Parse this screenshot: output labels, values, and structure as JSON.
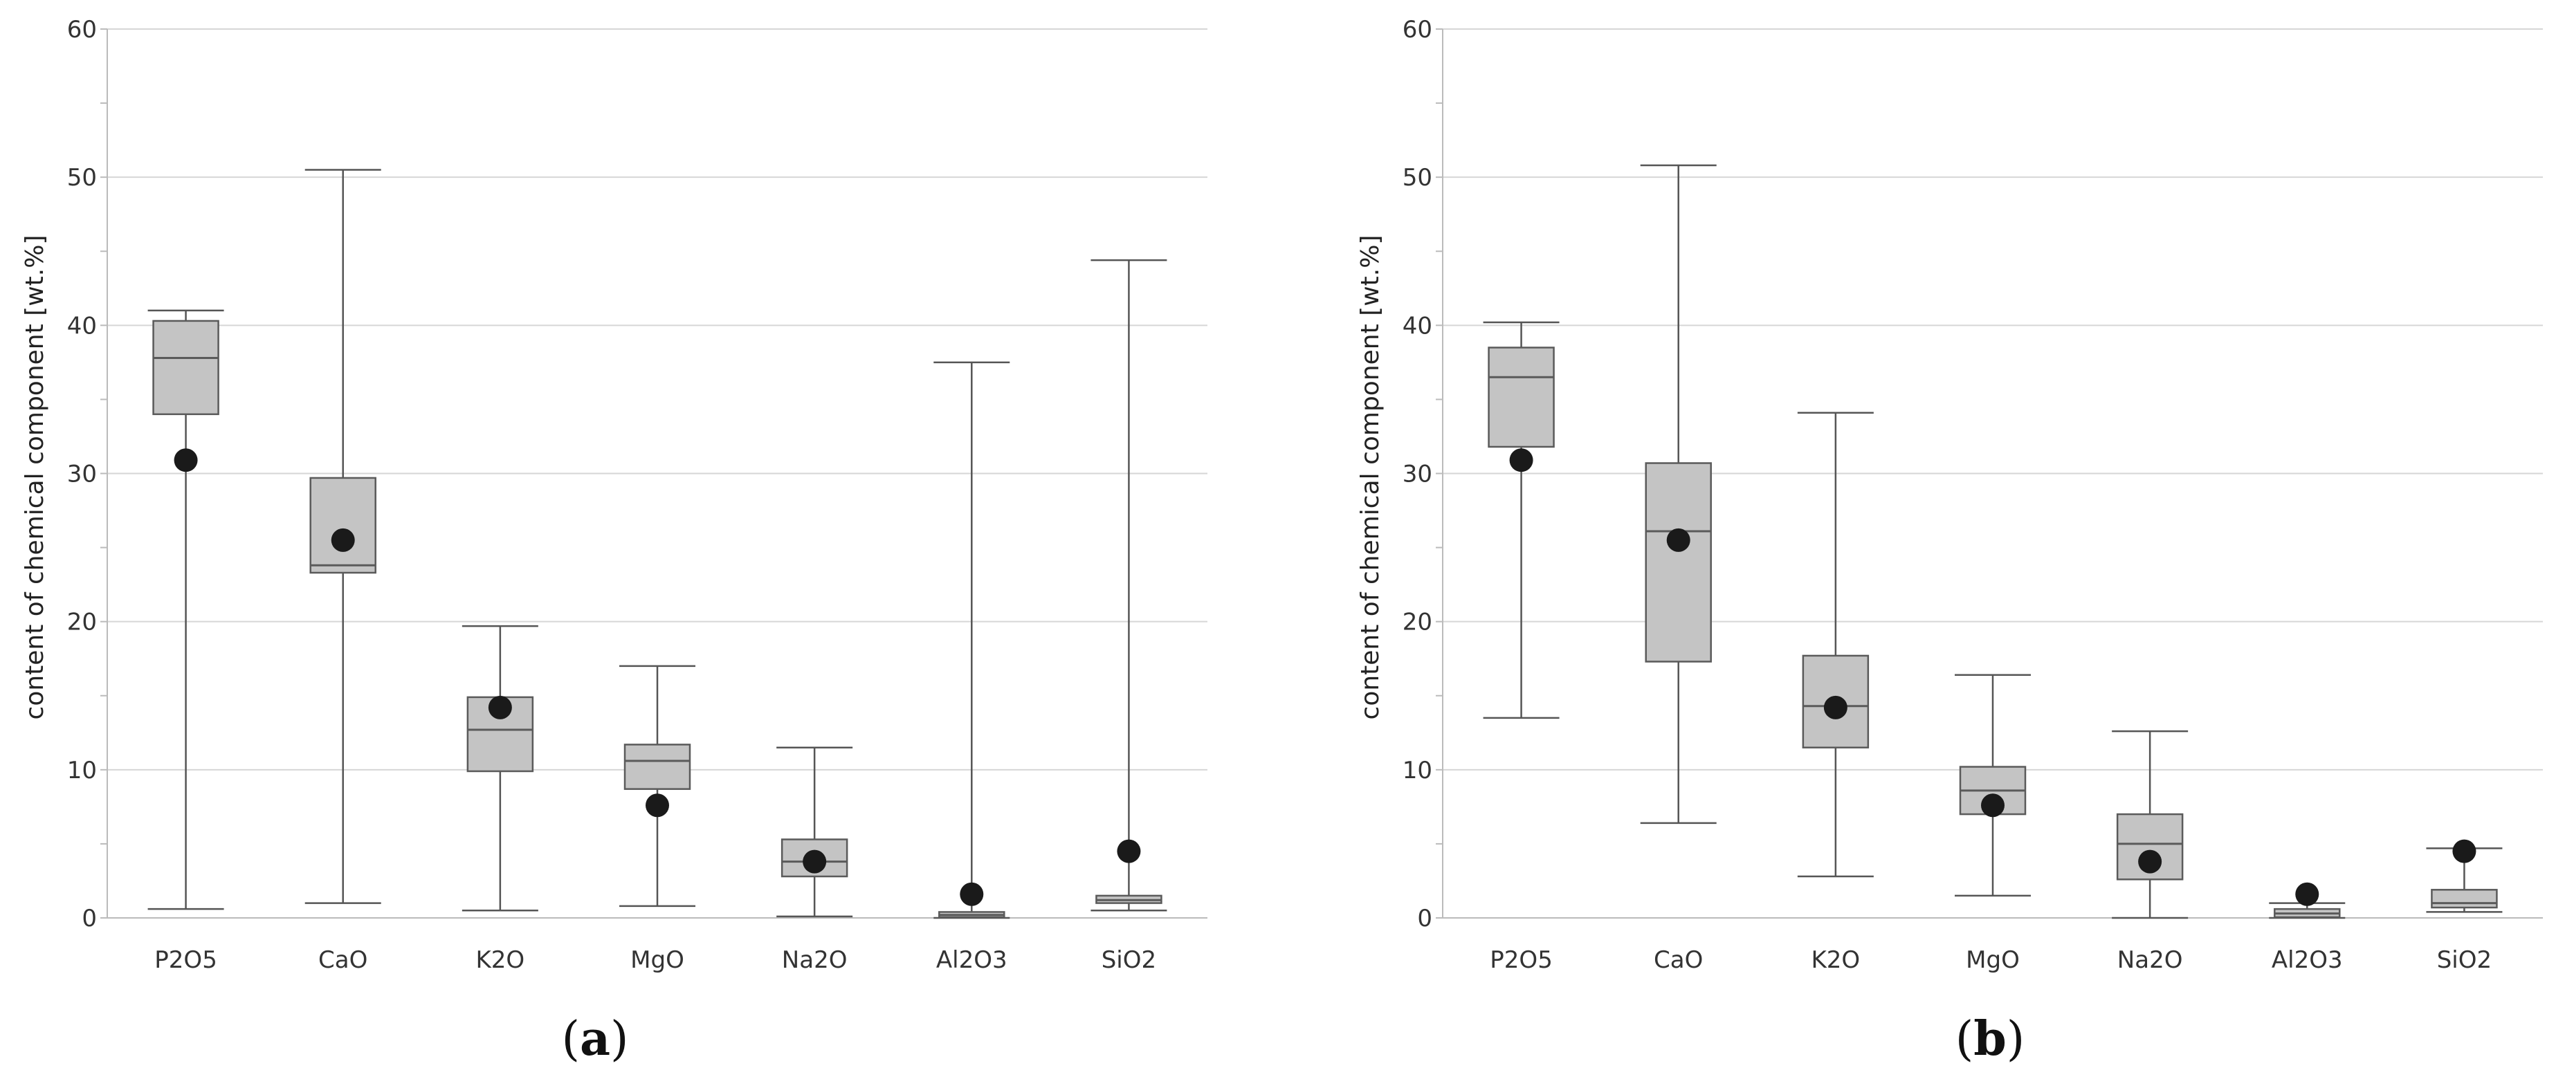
{
  "chart_data": [
    {
      "type": "box",
      "panel_label": "a",
      "ylabel": "content of chemical component [wt.%]",
      "ylim": [
        0,
        60
      ],
      "yticks": [
        "0",
        "10",
        "20",
        "30",
        "40",
        "50",
        "60"
      ],
      "grid": true,
      "categories": [
        "P2O5",
        "CaO",
        "K2O",
        "MgO",
        "Na2O",
        "Al2O3",
        "SiO2"
      ],
      "boxes": [
        {
          "category": "P2O5",
          "min": 0.6,
          "q1": 34.0,
          "median": 37.8,
          "q3": 40.3,
          "max": 41.0,
          "mean": 30.9
        },
        {
          "category": "CaO",
          "min": 1.0,
          "q1": 23.3,
          "median": 23.8,
          "q3": 29.7,
          "max": 50.5,
          "mean": 25.5
        },
        {
          "category": "K2O",
          "min": 0.5,
          "q1": 9.9,
          "median": 12.7,
          "q3": 14.9,
          "max": 19.7,
          "mean": 14.2
        },
        {
          "category": "MgO",
          "min": 0.8,
          "q1": 8.7,
          "median": 10.6,
          "q3": 11.7,
          "max": 17.0,
          "mean": 7.6
        },
        {
          "category": "Na2O",
          "min": 0.1,
          "q1": 2.8,
          "median": 3.8,
          "q3": 5.3,
          "max": 11.5,
          "mean": 3.8
        },
        {
          "category": "Al2O3",
          "min": 0.0,
          "q1": 0.05,
          "median": 0.2,
          "q3": 0.4,
          "max": 37.5,
          "mean": 1.6
        },
        {
          "category": "SiO2",
          "min": 0.5,
          "q1": 1.0,
          "median": 1.2,
          "q3": 1.5,
          "max": 44.4,
          "mean": 4.5
        }
      ]
    },
    {
      "type": "box",
      "panel_label": "b",
      "ylabel": "content of chemical component [wt.%]",
      "ylim": [
        0,
        60
      ],
      "yticks": [
        "0",
        "10",
        "20",
        "30",
        "40",
        "50",
        "60"
      ],
      "grid": true,
      "categories": [
        "P2O5",
        "CaO",
        "K2O",
        "MgO",
        "Na2O",
        "Al2O3",
        "SiO2"
      ],
      "boxes": [
        {
          "category": "P2O5",
          "min": 13.5,
          "q1": 31.8,
          "median": 36.5,
          "q3": 38.5,
          "max": 40.2,
          "mean": 30.9
        },
        {
          "category": "CaO",
          "min": 6.4,
          "q1": 17.3,
          "median": 26.1,
          "q3": 30.7,
          "max": 50.8,
          "mean": 25.5
        },
        {
          "category": "K2O",
          "min": 2.8,
          "q1": 11.5,
          "median": 14.3,
          "q3": 17.7,
          "max": 34.1,
          "mean": 14.2
        },
        {
          "category": "MgO",
          "min": 1.5,
          "q1": 7.0,
          "median": 8.6,
          "q3": 10.2,
          "max": 16.4,
          "mean": 7.6
        },
        {
          "category": "Na2O",
          "min": 0.0,
          "q1": 2.6,
          "median": 5.0,
          "q3": 7.0,
          "max": 12.6,
          "mean": 3.8
        },
        {
          "category": "Al2O3",
          "min": 0.0,
          "q1": 0.05,
          "median": 0.3,
          "q3": 0.6,
          "max": 1.0,
          "mean": 1.6
        },
        {
          "category": "SiO2",
          "min": 0.4,
          "q1": 0.7,
          "median": 1.0,
          "q3": 1.9,
          "max": 4.7,
          "mean": 4.5
        }
      ]
    }
  ],
  "colors": {
    "box_fill": "#c4c4c4",
    "box_stroke": "#5a5a5a",
    "whisker": "#555555",
    "mean_marker": "#1a1a1a",
    "grid": "#d6d6d6",
    "axis": "#bbbbbb"
  }
}
